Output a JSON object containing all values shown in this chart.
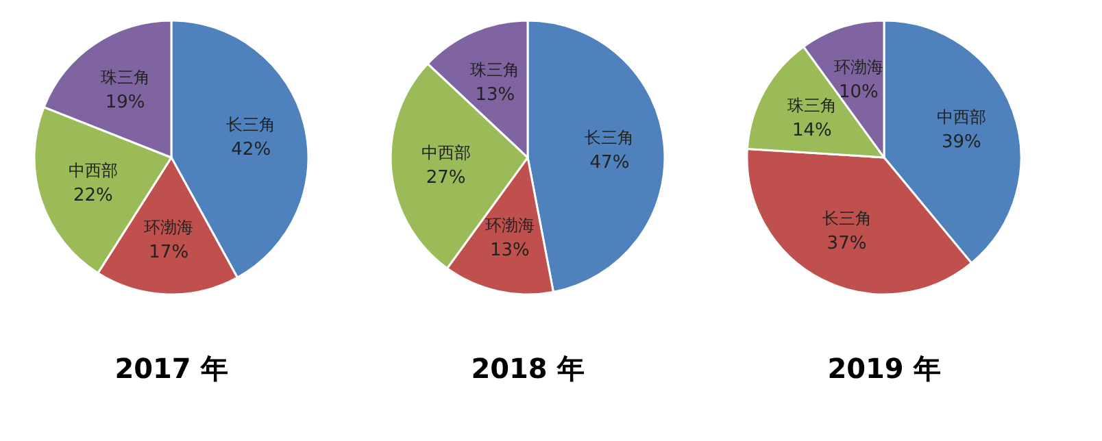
{
  "chart_data": [
    {
      "type": "pie",
      "title": "2017 年",
      "categories": [
        "长三角",
        "环渤海",
        "中西部",
        "珠三角"
      ],
      "values": [
        42,
        17,
        22,
        19
      ],
      "value_labels": [
        "42%",
        "17%",
        "22%",
        "19%"
      ],
      "colors": [
        "#4f81bd",
        "#c0504d",
        "#9bbb59",
        "#8064a2"
      ],
      "legend": false
    },
    {
      "type": "pie",
      "title": "2018 年",
      "categories": [
        "长三角",
        "环渤海",
        "中西部",
        "珠三角"
      ],
      "values": [
        47,
        13,
        27,
        13
      ],
      "value_labels": [
        "47%",
        "13%",
        "27%",
        "13%"
      ],
      "colors": [
        "#4f81bd",
        "#c0504d",
        "#9bbb59",
        "#8064a2"
      ],
      "legend": false
    },
    {
      "type": "pie",
      "title": "2019 年",
      "categories": [
        "中西部",
        "长三角",
        "珠三角",
        "环渤海"
      ],
      "values": [
        39,
        37,
        14,
        10
      ],
      "value_labels": [
        "39%",
        "37%",
        "14%",
        "10%"
      ],
      "colors": [
        "#4f81bd",
        "#c0504d",
        "#9bbb59",
        "#8064a2"
      ],
      "legend": false
    }
  ]
}
